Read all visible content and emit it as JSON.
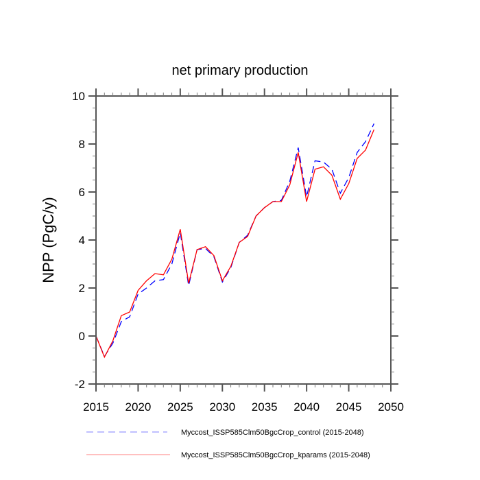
{
  "chart_data": {
    "type": "line",
    "title": "net primary production",
    "xlabel": "",
    "ylabel": "NPP  (PgC/y)",
    "xlim": [
      2015,
      2050
    ],
    "ylim": [
      -2,
      10
    ],
    "xticks": [
      2015,
      2020,
      2025,
      2030,
      2035,
      2040,
      2045,
      2050
    ],
    "xtick_labels": [
      "2015",
      "2020",
      "2025",
      "2030",
      "2035",
      "2040",
      "2045",
      "2050"
    ],
    "yticks": [
      -2,
      0,
      2,
      4,
      6,
      8,
      10
    ],
    "ytick_labels": [
      "-2",
      "0",
      "2",
      "4",
      "6",
      "8",
      "10"
    ],
    "grid": false,
    "legend_position": "bottom",
    "x": [
      2015,
      2016,
      2017,
      2018,
      2019,
      2020,
      2021,
      2022,
      2023,
      2024,
      2025,
      2026,
      2027,
      2028,
      2029,
      2030,
      2031,
      2032,
      2033,
      2034,
      2035,
      2036,
      2037,
      2038,
      2039,
      2040,
      2041,
      2042,
      2043,
      2044,
      2045,
      2046,
      2047,
      2048
    ],
    "series": [
      {
        "name": "Myccost_ISSP585Clm50BgcCrop_control (2015-2048)",
        "color": "#0000ff",
        "style": "dashed",
        "values": [
          0,
          -0.85,
          -0.3,
          0.6,
          0.8,
          1.75,
          2.0,
          2.3,
          2.35,
          3.0,
          4.3,
          2.1,
          3.6,
          3.65,
          3.3,
          2.25,
          2.85,
          3.9,
          4.2,
          5.0,
          5.35,
          5.6,
          5.65,
          6.45,
          7.85,
          5.8,
          7.3,
          7.25,
          6.95,
          5.95,
          6.6,
          7.65,
          8.1,
          8.85
        ]
      },
      {
        "name": "Myccost_ISSP585Clm50BgcCrop_kparams (2015-2048)",
        "color": "#ff0000",
        "style": "solid",
        "values": [
          0,
          -0.88,
          -0.2,
          0.85,
          1.0,
          1.9,
          2.3,
          2.6,
          2.55,
          3.2,
          4.45,
          2.2,
          3.6,
          3.72,
          3.35,
          2.3,
          2.9,
          3.9,
          4.15,
          5.0,
          5.35,
          5.6,
          5.6,
          6.3,
          7.65,
          5.6,
          6.95,
          7.05,
          6.7,
          5.7,
          6.35,
          7.4,
          7.75,
          8.6
        ]
      }
    ]
  }
}
